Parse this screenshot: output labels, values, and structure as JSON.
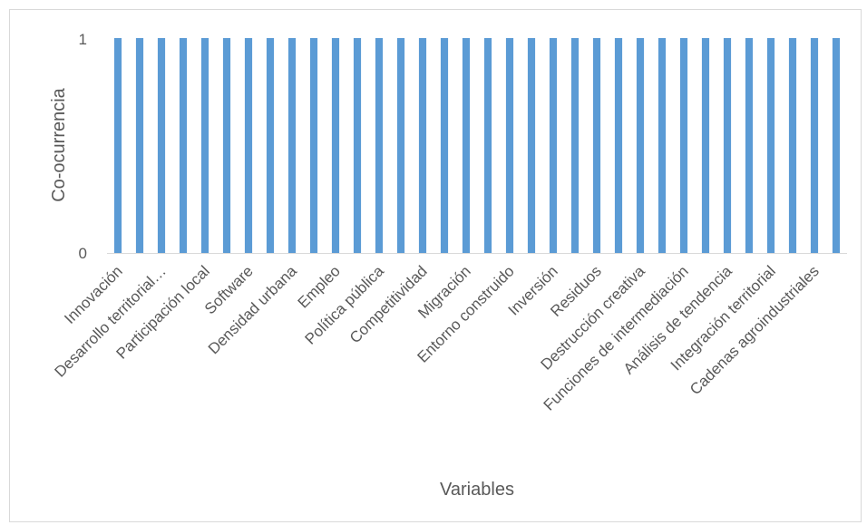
{
  "chart_data": {
    "type": "bar",
    "title": "",
    "xlabel": "Variables",
    "ylabel": "Co-ocurrencia",
    "ylim": [
      0,
      1
    ],
    "yticks": [
      "0",
      "1"
    ],
    "grid": false,
    "legend": "none",
    "bar_color": "#5b9bd5",
    "visible_category_labels": [
      "Innovación",
      "Desarrollo territorial…",
      "Participación local",
      "Software",
      "Densidad urbana",
      "Empleo",
      "Política pública",
      "Competitividad",
      "Migración",
      "Entorno construido",
      "Inversión",
      "Residuos",
      "Destrucción creativa",
      "Funciones de intermediación",
      "Análisis de tendencia",
      "Integración territorial",
      "Cadenas agroindustriales"
    ],
    "values": [
      1,
      1,
      1,
      1,
      1,
      1,
      1,
      1,
      1,
      1,
      1,
      1,
      1,
      1,
      1,
      1,
      1,
      1,
      1,
      1,
      1,
      1,
      1,
      1,
      1,
      1,
      1,
      1,
      1,
      1,
      1,
      1,
      1,
      1
    ]
  }
}
